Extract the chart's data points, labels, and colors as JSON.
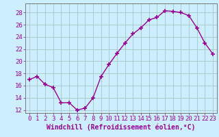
{
  "x": [
    0,
    1,
    2,
    3,
    4,
    5,
    6,
    7,
    8,
    9,
    10,
    11,
    12,
    13,
    14,
    15,
    16,
    17,
    18,
    19,
    20,
    21,
    22,
    23
  ],
  "y": [
    17.0,
    17.5,
    16.2,
    15.7,
    13.2,
    13.2,
    12.0,
    12.3,
    14.0,
    17.5,
    19.5,
    21.3,
    23.0,
    24.5,
    25.5,
    26.8,
    27.2,
    28.3,
    28.2,
    28.0,
    27.5,
    25.5,
    23.0,
    21.2
  ],
  "line_color": "#990099",
  "marker": "+",
  "marker_size": 4,
  "marker_lw": 1.2,
  "bg_color": "#cceeff",
  "grid_color": "#aacccc",
  "xlabel": "Windchill (Refroidissement éolien,°C)",
  "xlabel_fontsize": 7,
  "ylabel_ticks": [
    12,
    14,
    16,
    18,
    20,
    22,
    24,
    26,
    28
  ],
  "xlim": [
    -0.5,
    23.5
  ],
  "ylim": [
    11.5,
    29.5
  ],
  "tick_label_color": "#990099",
  "tick_label_fontsize": 6.5,
  "line_width": 1.0
}
